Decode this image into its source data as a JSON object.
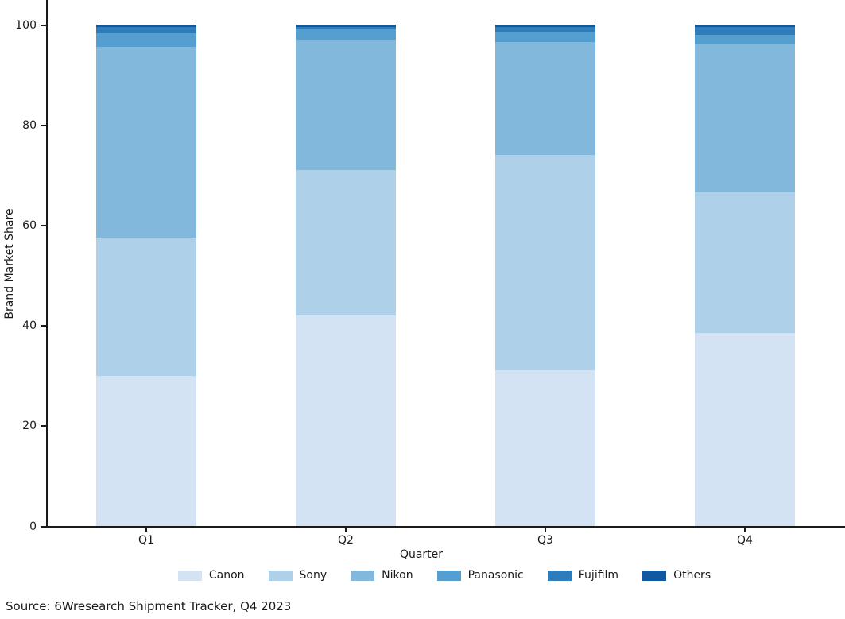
{
  "chart_data": {
    "type": "bar",
    "stacked": true,
    "categories": [
      "Q1",
      "Q2",
      "Q3",
      "Q4"
    ],
    "series": [
      {
        "name": "Canon",
        "color": "#d3e3f3",
        "values": [
          30,
          42,
          31,
          38.5
        ]
      },
      {
        "name": "Sony",
        "color": "#aed0e9",
        "values": [
          27.5,
          29,
          43,
          28
        ]
      },
      {
        "name": "Nikon",
        "color": "#82b8dc",
        "values": [
          38,
          26,
          22.5,
          29.5
        ]
      },
      {
        "name": "Panasonic",
        "color": "#549ed0",
        "values": [
          3,
          2,
          2,
          2
        ]
      },
      {
        "name": "Fujifilm",
        "color": "#2e7cba",
        "values": [
          1,
          0.5,
          1,
          1.5
        ]
      },
      {
        "name": "Others",
        "color": "#10589f",
        "values": [
          0.5,
          0.5,
          0.5,
          0.5
        ]
      }
    ],
    "xlabel": "Quarter",
    "ylabel": "Brand Market Share",
    "yticks": [
      "100",
      "80",
      "60",
      "40",
      "20",
      "0"
    ],
    "ytick_values": [
      100,
      80,
      60,
      40,
      20,
      0
    ],
    "ylim": [
      0,
      105
    ],
    "grid": false,
    "legend_position": "bottom"
  },
  "source_note": "Source: 6Wresearch Shipment Tracker, Q4 2023"
}
